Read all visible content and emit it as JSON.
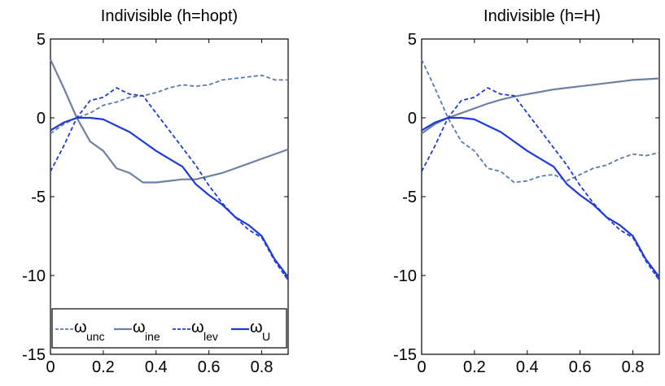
{
  "chart_data": [
    {
      "type": "line",
      "title": "Indivisible (h=hopt)",
      "xlim": [
        0,
        0.9
      ],
      "ylim": [
        -15,
        5
      ],
      "xticks": [
        0,
        0.2,
        0.4,
        0.6,
        0.8
      ],
      "yticks": [
        5,
        0,
        -5,
        -10,
        -15
      ],
      "xtick_labels": [
        "0",
        "0.2",
        "0.4",
        "0.6",
        "0.8"
      ],
      "ytick_labels": [
        "5",
        "0",
        "-5",
        "-10",
        "-15"
      ],
      "grid": false,
      "legend": {
        "placement": "bottom",
        "entries": [
          {
            "symbol": "ω",
            "sub": "unc"
          },
          {
            "symbol": "ω",
            "sub": "ine"
          },
          {
            "symbol": "ω",
            "sub": "lev"
          },
          {
            "symbol": "ω",
            "sub": "U"
          }
        ]
      },
      "series": [
        {
          "color": "#5a7ab0",
          "dash": "dashed",
          "width": 1.8,
          "x": [
            0,
            0.05,
            0.1,
            0.15,
            0.2,
            0.25,
            0.3,
            0.35,
            0.4,
            0.45,
            0.5,
            0.55,
            0.6,
            0.65,
            0.7,
            0.75,
            0.8,
            0.85,
            0.9
          ],
          "y": [
            -1.0,
            -0.4,
            0.0,
            0.3,
            0.8,
            1.0,
            1.3,
            1.4,
            1.6,
            1.9,
            2.1,
            2.0,
            2.1,
            2.4,
            2.5,
            2.6,
            2.7,
            2.4,
            2.4
          ]
        },
        {
          "color": "#6e80a3",
          "dash": "solid",
          "width": 2.2,
          "x": [
            0,
            0.05,
            0.1,
            0.15,
            0.2,
            0.25,
            0.3,
            0.35,
            0.4,
            0.45,
            0.5,
            0.55,
            0.6,
            0.65,
            0.7,
            0.75,
            0.8,
            0.85,
            0.9
          ],
          "y": [
            3.7,
            1.9,
            0.0,
            -1.5,
            -2.1,
            -3.2,
            -3.5,
            -4.1,
            -4.1,
            -4.0,
            -3.9,
            -3.9,
            -3.7,
            -3.5,
            -3.2,
            -2.9,
            -2.6,
            -2.3,
            -2.0
          ]
        },
        {
          "color": "#1f3bd6",
          "dash": "dashed",
          "width": 1.8,
          "x": [
            0,
            0.05,
            0.1,
            0.15,
            0.2,
            0.25,
            0.3,
            0.35,
            0.4,
            0.45,
            0.5,
            0.55,
            0.6,
            0.65,
            0.7,
            0.75,
            0.8,
            0.85,
            0.9
          ],
          "y": [
            -3.4,
            -1.8,
            0.0,
            1.1,
            1.3,
            1.9,
            1.5,
            1.4,
            0.3,
            -0.8,
            -1.9,
            -3.0,
            -4.3,
            -5.4,
            -6.3,
            -7.1,
            -7.6,
            -9.1,
            -10.3
          ]
        },
        {
          "color": "#1f3bd6",
          "dash": "solid",
          "width": 2.2,
          "x": [
            0,
            0.05,
            0.1,
            0.15,
            0.2,
            0.25,
            0.3,
            0.35,
            0.4,
            0.45,
            0.5,
            0.55,
            0.6,
            0.65,
            0.7,
            0.75,
            0.8,
            0.85,
            0.9
          ],
          "y": [
            -0.8,
            -0.3,
            0.0,
            0.0,
            -0.1,
            -0.5,
            -0.9,
            -1.5,
            -2.1,
            -2.6,
            -3.1,
            -4.2,
            -4.9,
            -5.5,
            -6.3,
            -6.8,
            -7.5,
            -9.0,
            -10.1
          ]
        }
      ]
    },
    {
      "type": "line",
      "title": "Indivisible (h=H)",
      "xlim": [
        0,
        0.9
      ],
      "ylim": [
        -15,
        5
      ],
      "xticks": [
        0,
        0.2,
        0.4,
        0.6,
        0.8
      ],
      "yticks": [
        5,
        0,
        -5,
        -10,
        -15
      ],
      "xtick_labels": [
        "0",
        "0.2",
        "0.4",
        "0.6",
        "0.8"
      ],
      "ytick_labels": [
        "5",
        "0",
        "-5",
        "-10",
        "-15"
      ],
      "grid": false,
      "series": [
        {
          "color": "#5a7ab0",
          "dash": "dashed",
          "width": 1.8,
          "x": [
            0,
            0.05,
            0.1,
            0.15,
            0.2,
            0.25,
            0.3,
            0.35,
            0.4,
            0.45,
            0.5,
            0.55,
            0.6,
            0.65,
            0.7,
            0.75,
            0.8,
            0.85,
            0.9
          ],
          "y": [
            3.7,
            1.9,
            0.0,
            -1.5,
            -2.1,
            -3.2,
            -3.4,
            -4.1,
            -4.0,
            -3.7,
            -3.6,
            -4.0,
            -3.6,
            -3.2,
            -3.0,
            -2.6,
            -2.3,
            -2.4,
            -2.2
          ]
        },
        {
          "color": "#6e80a3",
          "dash": "solid",
          "width": 2.2,
          "x": [
            0,
            0.05,
            0.1,
            0.15,
            0.2,
            0.25,
            0.3,
            0.35,
            0.4,
            0.45,
            0.5,
            0.55,
            0.6,
            0.65,
            0.7,
            0.75,
            0.8,
            0.85,
            0.9
          ],
          "y": [
            -1.0,
            -0.4,
            0.0,
            0.3,
            0.6,
            0.9,
            1.15,
            1.35,
            1.5,
            1.65,
            1.8,
            1.9,
            2.0,
            2.1,
            2.2,
            2.3,
            2.4,
            2.45,
            2.5
          ]
        },
        {
          "color": "#1f3bd6",
          "dash": "dashed",
          "width": 1.8,
          "x": [
            0,
            0.05,
            0.1,
            0.15,
            0.2,
            0.25,
            0.3,
            0.35,
            0.4,
            0.45,
            0.5,
            0.55,
            0.6,
            0.65,
            0.7,
            0.75,
            0.8,
            0.85,
            0.9
          ],
          "y": [
            -3.4,
            -1.8,
            0.0,
            1.1,
            1.3,
            1.9,
            1.5,
            1.4,
            0.3,
            -0.8,
            -1.9,
            -3.0,
            -4.3,
            -5.4,
            -6.3,
            -7.1,
            -7.6,
            -9.1,
            -10.3
          ]
        },
        {
          "color": "#1f3bd6",
          "dash": "solid",
          "width": 2.2,
          "x": [
            0,
            0.05,
            0.1,
            0.15,
            0.2,
            0.25,
            0.3,
            0.35,
            0.4,
            0.45,
            0.5,
            0.55,
            0.6,
            0.65,
            0.7,
            0.75,
            0.8,
            0.85,
            0.9
          ],
          "y": [
            -0.8,
            -0.3,
            0.0,
            0.0,
            -0.1,
            -0.5,
            -0.9,
            -1.5,
            -2.1,
            -2.6,
            -3.1,
            -4.2,
            -4.9,
            -5.5,
            -6.3,
            -6.8,
            -7.5,
            -9.0,
            -10.1
          ]
        }
      ]
    }
  ]
}
